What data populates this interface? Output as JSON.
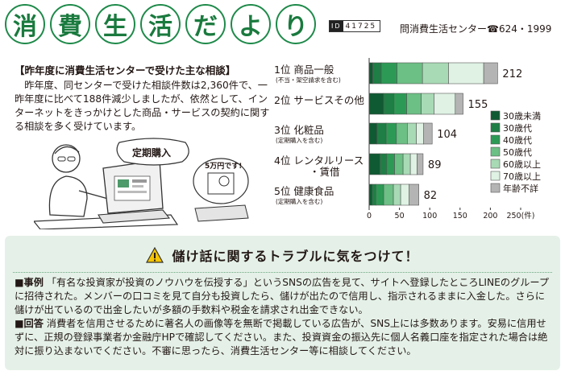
{
  "header": {
    "title_chars": [
      "消",
      "費",
      "生",
      "活",
      "だ",
      "よ",
      "り"
    ],
    "id_mark": "ID",
    "id_number": "41725",
    "contact": "問消費生活センター☎624・1999"
  },
  "summary": {
    "heading": "【昨年度に消費生活センターで受けた主な相談】",
    "body": "昨年度、同センターで受けた相談件数は2,360件で、一昨年度に比べて188件減少しましたが、依然として、インターネットをきっかけとした商品・サービスの契約に関する相談を多く受けています。"
  },
  "illustration": {
    "speech_1": "定期購入",
    "speech_2": "5万円です!"
  },
  "chart_data": {
    "type": "bar",
    "stacked": true,
    "orientation": "horizontal",
    "categories": [
      {
        "rank": "1位",
        "name": "商品一般",
        "note": "(不当・架空請求を含む)",
        "total": "212"
      },
      {
        "rank": "2位",
        "name": "サービスその他",
        "note": "",
        "total": "155"
      },
      {
        "rank": "3位",
        "name": "化粧品",
        "note": "(定期購入を含む)",
        "total": "104"
      },
      {
        "rank": "4位",
        "name": "レンタルリース",
        "name2": "・賃借",
        "note": "",
        "total": "89"
      },
      {
        "rank": "5位",
        "name": "健康食品",
        "note": "(定期購入を含む)",
        "total": "82"
      }
    ],
    "series": [
      {
        "name": "30歳未満",
        "color": "#0f5a32",
        "values": [
          6,
          24,
          13,
          18,
          5
        ]
      },
      {
        "name": "30歳代",
        "color": "#1f7e45",
        "values": [
          14,
          17,
          15,
          11,
          6
        ]
      },
      {
        "name": "40歳代",
        "color": "#2c9a55",
        "values": [
          26,
          21,
          17,
          13,
          13
        ]
      },
      {
        "name": "50歳代",
        "color": "#6cbf85",
        "values": [
          42,
          24,
          18,
          14,
          16
        ]
      },
      {
        "name": "60歳以上",
        "color": "#a8dab5",
        "values": [
          43,
          21,
          15,
          12,
          12
        ]
      },
      {
        "name": "70歳以上",
        "color": "#dff2e4",
        "values": [
          58,
          35,
          12,
          11,
          14
        ]
      },
      {
        "name": "年齢不詳",
        "color": "#b4b4b4",
        "values": [
          23,
          13,
          14,
          10,
          16
        ]
      }
    ],
    "xticks": [
      "0",
      "50",
      "100",
      "150",
      "200",
      "250(件)"
    ],
    "xlim": [
      0,
      250
    ]
  },
  "notice": {
    "title": "儲け話に関するトラブルに気をつけて！",
    "case_label": "■事例",
    "case_text": "「有名な投資家が投資のノウハウを伝授する」というSNSの広告を見て、サイトへ登録したところLINEのグループに招待された。メンバーの口コミを見て自分も投資したら、儲けが出たので信用し、指示されるままに入金した。さらに儲けが出ているので出金したいが多額の手数料や税金を請求され出金できない。",
    "answer_label": "■回答",
    "answer_text": "消費者を信用させるために著名人の画像等を無断で掲載している広告が、SNS上には多数あります。安易に信用せずに、正規の登録事業者か金融庁HPで確認してください。また、投資資金の振込先に個人名義口座を指定された場合は絶対に振り込まないでください。不審に思ったら、消費生活センター等に相談してください。"
  }
}
